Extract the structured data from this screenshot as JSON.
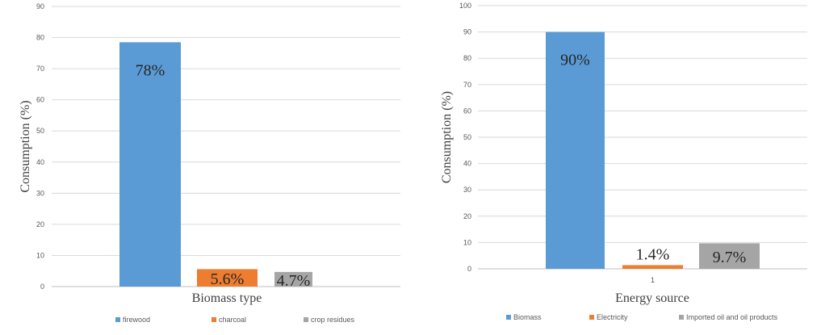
{
  "chart_data": [
    {
      "type": "bar",
      "title": "",
      "xlabel": "Biomass type",
      "ylabel": "Consumption (%)",
      "ylim": [
        0,
        90
      ],
      "yticks": [
        0,
        10,
        20,
        30,
        40,
        50,
        60,
        70,
        80,
        90
      ],
      "grid": true,
      "legend_position": "bottom",
      "category_label": "",
      "series": [
        {
          "name": "firewood",
          "value": 78.5,
          "label": "78%",
          "color": "#5b9bd5"
        },
        {
          "name": "charcoal",
          "value": 5.6,
          "label": "5.6%",
          "color": "#ed7d31"
        },
        {
          "name": "crop residues",
          "value": 4.7,
          "label": "4.7%",
          "color": "#a5a5a5"
        }
      ]
    },
    {
      "type": "bar",
      "title": "",
      "xlabel": "Energy source",
      "ylabel": "Consumption (%)",
      "ylim": [
        0,
        100
      ],
      "yticks": [
        0,
        10,
        20,
        30,
        40,
        50,
        60,
        70,
        80,
        90,
        100
      ],
      "grid": true,
      "legend_position": "bottom",
      "category_label": "1",
      "series": [
        {
          "name": "Biomass",
          "value": 90,
          "label": "90%",
          "color": "#5b9bd5"
        },
        {
          "name": "Electricity",
          "value": 1.4,
          "label": "1.4%",
          "color": "#ed7d31"
        },
        {
          "name": "Imported oil and oil products",
          "value": 9.7,
          "label": "9.7%",
          "color": "#a5a5a5"
        }
      ]
    }
  ]
}
